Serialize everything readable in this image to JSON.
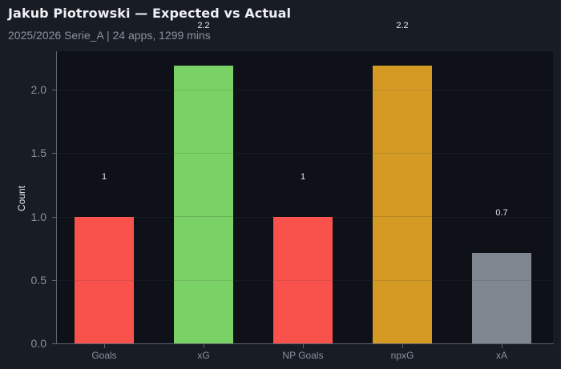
{
  "header": {
    "title": "Jakub Piotrowski — Expected vs Actual",
    "subtitle": "2025/2026 Serie_A | 24 apps, 1299 mins"
  },
  "chart_data": {
    "type": "bar",
    "title": "Jakub Piotrowski — Expected vs Actual",
    "subtitle": "2025/2026 Serie_A | 24 apps, 1299 mins",
    "categories": [
      "Goals",
      "xG",
      "NP Goals",
      "npxG",
      "xA"
    ],
    "values": [
      1,
      2.19,
      1,
      2.19,
      0.71
    ],
    "value_labels": [
      "1",
      "2.2",
      "1",
      "2.2",
      "0.7"
    ],
    "colors": [
      "#f9524d",
      "#7ad166",
      "#f9524d",
      "#d49a24",
      "#80868f"
    ],
    "xlabel": "",
    "ylabel": "Count",
    "ylim": [
      0,
      2.3
    ],
    "yticks": [
      "0.0",
      "0.5",
      "1.0",
      "1.5",
      "2.0"
    ],
    "grid": true,
    "legend": "none"
  },
  "theme": {
    "background": "#181c24",
    "plot_background": "#0e1118",
    "axis_color": "#5e6470",
    "tick_label_color": "#8b919c",
    "title_color": "#eef0f4"
  }
}
